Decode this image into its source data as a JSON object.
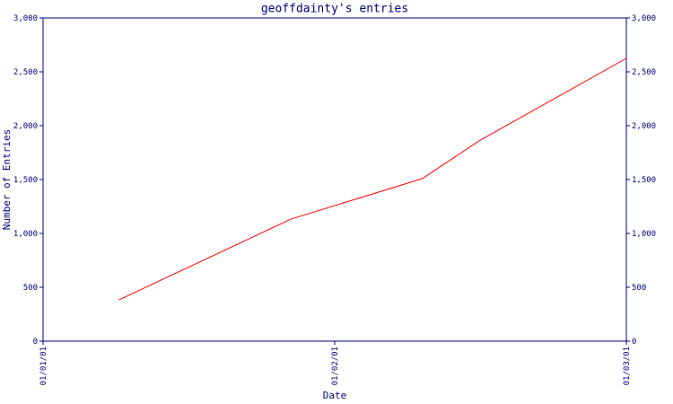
{
  "chart_data": {
    "type": "line",
    "title": "geoffdainty's entries",
    "x_label": "Date",
    "y_label": "Number of Entries",
    "x": [
      0.26,
      0.85,
      1.3,
      1.5,
      2.0
    ],
    "series": [
      {
        "name": "Entries",
        "color": "#ff0000",
        "values": [
          383,
          1133,
          1508,
          1867,
          2625
        ]
      }
    ],
    "xlim": [
      0,
      2
    ],
    "xticks": [
      {
        "value": 0,
        "label": "01/01/01"
      },
      {
        "value": 1,
        "label": "01/02/01"
      },
      {
        "value": 2,
        "label": "01/03/01"
      }
    ],
    "ylim": [
      0,
      3000
    ],
    "yticks": [
      0,
      500,
      {
        "value": 1000,
        "label": "1,000"
      },
      {
        "value": 1500,
        "label": "1,500"
      },
      {
        "value": 2000,
        "label": "2,000"
      },
      {
        "value": 2500,
        "label": "2,500"
      },
      {
        "value": 3000,
        "label": "3,000"
      }
    ],
    "axis_color": "#000080"
  }
}
